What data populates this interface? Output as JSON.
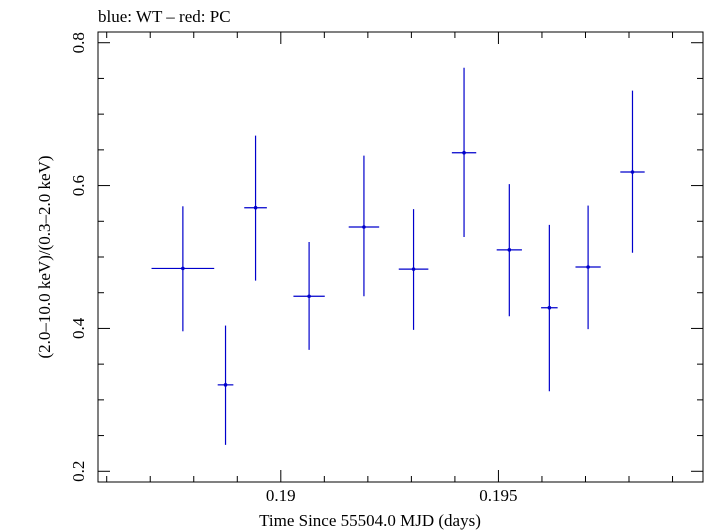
{
  "chart_data": {
    "type": "scatter",
    "title": "blue: WT – red: PC",
    "xlabel": "Time Since 55504.0 MJD (days)",
    "ylabel": "(2.0–10.0 keV)/(0.3–2.0 keV)",
    "xlim": [
      0.1858,
      0.1997
    ],
    "ylim": [
      0.185,
      0.815
    ],
    "x_ticks": [
      0.19,
      0.195
    ],
    "x_tick_labels": [
      "0.19",
      "0.195"
    ],
    "y_ticks": [
      0.2,
      0.4,
      0.6,
      0.8
    ],
    "y_tick_labels": [
      "0.2",
      "0.4",
      "0.6",
      "0.8"
    ],
    "grid": false,
    "series": [
      {
        "color": "#0000cc",
        "points": [
          {
            "x": 0.18775,
            "xerr": 0.00072,
            "y": 0.484,
            "yerr_low": 0.088,
            "yerr_high": 0.087
          },
          {
            "x": 0.18873,
            "xerr": 0.00018,
            "y": 0.321,
            "yerr_low": 0.084,
            "yerr_high": 0.083
          },
          {
            "x": 0.18942,
            "xerr": 0.00026,
            "y": 0.569,
            "yerr_low": 0.102,
            "yerr_high": 0.101
          },
          {
            "x": 0.19065,
            "xerr": 0.00036,
            "y": 0.445,
            "yerr_low": 0.075,
            "yerr_high": 0.076
          },
          {
            "x": 0.19191,
            "xerr": 0.00035,
            "y": 0.542,
            "yerr_low": 0.097,
            "yerr_high": 0.1
          },
          {
            "x": 0.19305,
            "xerr": 0.00034,
            "y": 0.483,
            "yerr_low": 0.085,
            "yerr_high": 0.084
          },
          {
            "x": 0.19421,
            "xerr": 0.00028,
            "y": 0.646,
            "yerr_low": 0.118,
            "yerr_high": 0.119
          },
          {
            "x": 0.19525,
            "xerr": 0.00029,
            "y": 0.51,
            "yerr_low": 0.093,
            "yerr_high": 0.092
          },
          {
            "x": 0.19617,
            "xerr": 0.00019,
            "y": 0.429,
            "yerr_low": 0.117,
            "yerr_high": 0.116
          },
          {
            "x": 0.19706,
            "xerr": 0.00029,
            "y": 0.486,
            "yerr_low": 0.087,
            "yerr_high": 0.086
          },
          {
            "x": 0.19808,
            "xerr": 0.00028,
            "y": 0.619,
            "yerr_low": 0.113,
            "yerr_high": 0.114
          }
        ]
      }
    ]
  }
}
